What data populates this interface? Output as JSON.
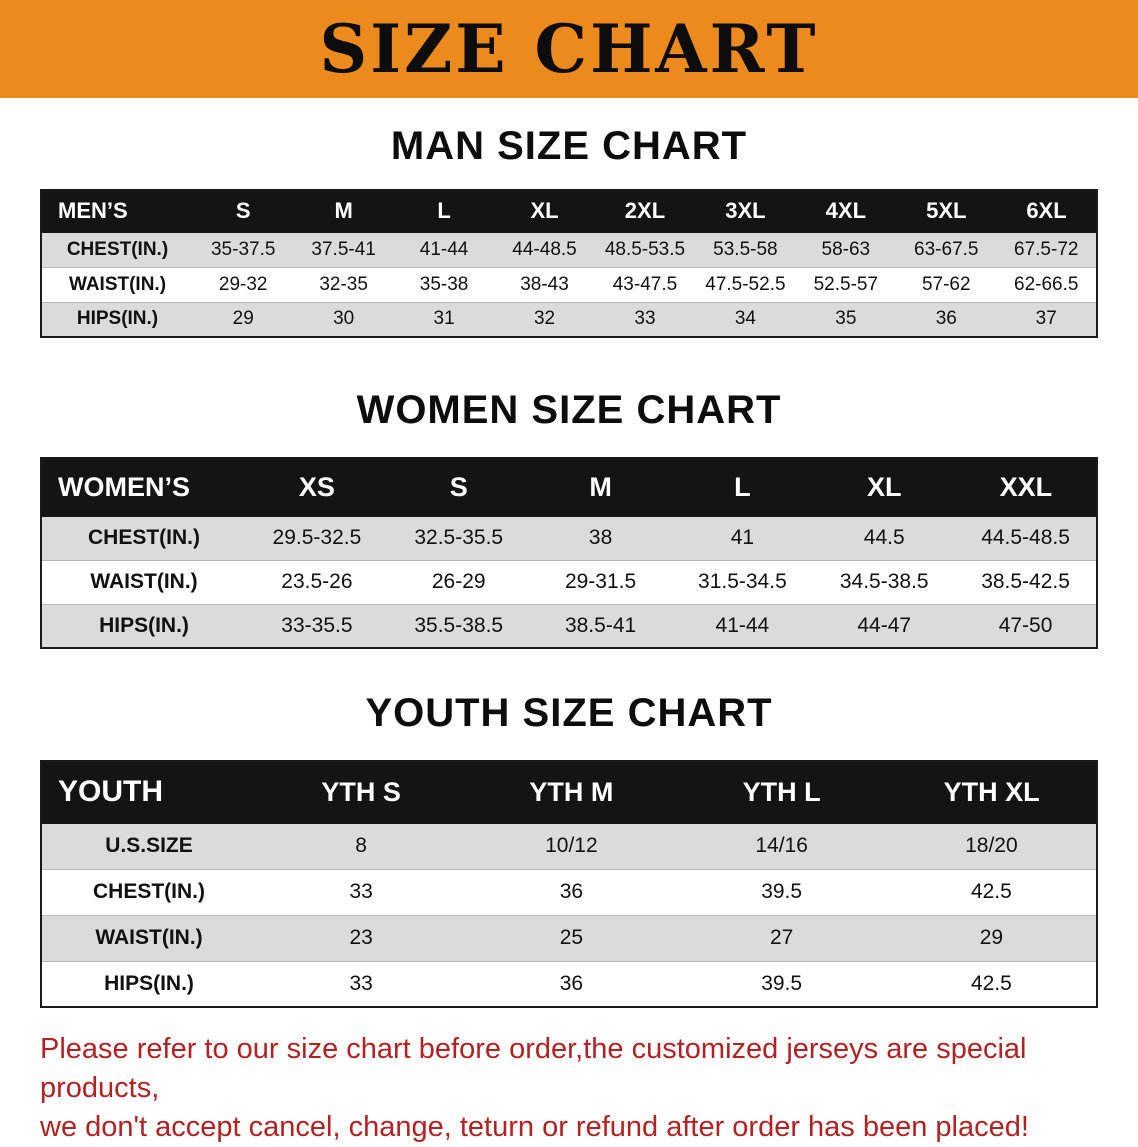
{
  "banner": {
    "title": "SIZE CHART",
    "bg_color": "#EC8A1D",
    "text_color": "#0d0d0d"
  },
  "sections": {
    "men": {
      "heading": "MAN SIZE CHART"
    },
    "women": {
      "heading": "WOMEN SIZE CHART"
    },
    "youth": {
      "heading": "YOUTH SIZE CHART"
    }
  },
  "colors": {
    "table_header_bg": "#141414",
    "table_header_text": "#ffffff",
    "stripe_row_bg": "#dbdbdb",
    "disclaimer_text": "#B22222"
  },
  "tables": {
    "men": {
      "header": [
        "MEN’S",
        "S",
        "M",
        "L",
        "XL",
        "2XL",
        "3XL",
        "4XL",
        "5XL",
        "6XL"
      ],
      "rows": [
        [
          "CHEST(IN.)",
          "35-37.5",
          "37.5-41",
          "41-44",
          "44-48.5",
          "48.5-53.5",
          "53.5-58",
          "58-63",
          "63-67.5",
          "67.5-72"
        ],
        [
          "WAIST(IN.)",
          "29-32",
          "32-35",
          "35-38",
          "38-43",
          "43-47.5",
          "47.5-52.5",
          "52.5-57",
          "57-62",
          "62-66.5"
        ],
        [
          "HIPS(IN.)",
          "29",
          "30",
          "31",
          "32",
          "33",
          "34",
          "35",
          "36",
          "37"
        ]
      ]
    },
    "women": {
      "header": [
        "WOMEN’S",
        "XS",
        "S",
        "M",
        "L",
        "XL",
        "XXL"
      ],
      "rows": [
        [
          "CHEST(IN.)",
          "29.5-32.5",
          "32.5-35.5",
          "38",
          "41",
          "44.5",
          "44.5-48.5"
        ],
        [
          "WAIST(IN.)",
          "23.5-26",
          "26-29",
          "29-31.5",
          "31.5-34.5",
          "34.5-38.5",
          "38.5-42.5"
        ],
        [
          "HIPS(IN.)",
          "33-35.5",
          "35.5-38.5",
          "38.5-41",
          "41-44",
          "44-47",
          "47-50"
        ]
      ]
    },
    "youth": {
      "header": [
        "YOUTH",
        "YTH S",
        "YTH M",
        "YTH L",
        "YTH XL"
      ],
      "rows": [
        [
          "U.S.SIZE",
          "8",
          "10/12",
          "14/16",
          "18/20"
        ],
        [
          "CHEST(IN.)",
          "33",
          "36",
          "39.5",
          "42.5"
        ],
        [
          "WAIST(IN.)",
          "23",
          "25",
          "27",
          "29"
        ],
        [
          "HIPS(IN.)",
          "33",
          "36",
          "39.5",
          "42.5"
        ]
      ]
    }
  },
  "disclaimer": {
    "line1": "Please refer to our size chart before order,the customized jerseys are special products,",
    "line2": "we don't accept cancel, change, teturn or refund after order has been placed!"
  }
}
